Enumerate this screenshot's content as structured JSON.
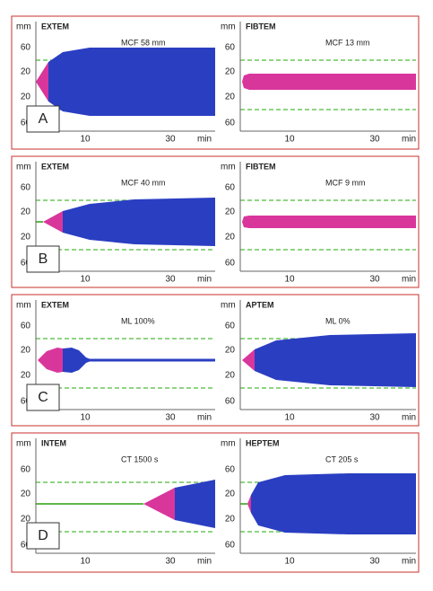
{
  "rows": [
    {
      "label": "A",
      "panels": [
        {
          "test": "EXTEM",
          "note": "MCF  58 mm",
          "unit": "mm",
          "yticks": [
            "60",
            "20",
            "20",
            "60"
          ],
          "xticks": [
            "10",
            "30",
            "min"
          ]
        },
        {
          "test": "FIBTEM",
          "note": "MCF  13 mm",
          "unit": "mm",
          "yticks": [
            "60",
            "20",
            "20",
            "60"
          ],
          "xticks": [
            "10",
            "30",
            "min"
          ]
        }
      ]
    },
    {
      "label": "B",
      "panels": [
        {
          "test": "EXTEM",
          "note": "MCF  40 mm",
          "unit": "mm",
          "yticks": [
            "60",
            "20",
            "20",
            "60"
          ],
          "xticks": [
            "10",
            "30",
            "min"
          ]
        },
        {
          "test": "FIBTEM",
          "note": "MCF  9 mm",
          "unit": "mm",
          "yticks": [
            "60",
            "20",
            "20",
            "60"
          ],
          "xticks": [
            "10",
            "30",
            "min"
          ]
        }
      ]
    },
    {
      "label": "C",
      "panels": [
        {
          "test": "EXTEM",
          "note": "ML 100%",
          "unit": "mm",
          "yticks": [
            "60",
            "20",
            "20",
            "60"
          ],
          "xticks": [
            "10",
            "30",
            "min"
          ]
        },
        {
          "test": "APTEM",
          "note": "ML 0%",
          "unit": "mm",
          "yticks": [
            "60",
            "20",
            "20",
            "60"
          ],
          "xticks": [
            "10",
            "30",
            "min"
          ]
        }
      ]
    },
    {
      "label": "D",
      "panels": [
        {
          "test": "INTEM",
          "note": "CT 1500 s",
          "unit": "mm",
          "yticks": [
            "60",
            "20",
            "20",
            "60"
          ],
          "xticks": [
            "10",
            "30",
            "min"
          ]
        },
        {
          "test": "HEPTEM",
          "note": "CT 205 s",
          "unit": "mm",
          "yticks": [
            "60",
            "20",
            "20",
            "60"
          ],
          "xticks": [
            "10",
            "30",
            "min"
          ]
        }
      ]
    }
  ]
}
